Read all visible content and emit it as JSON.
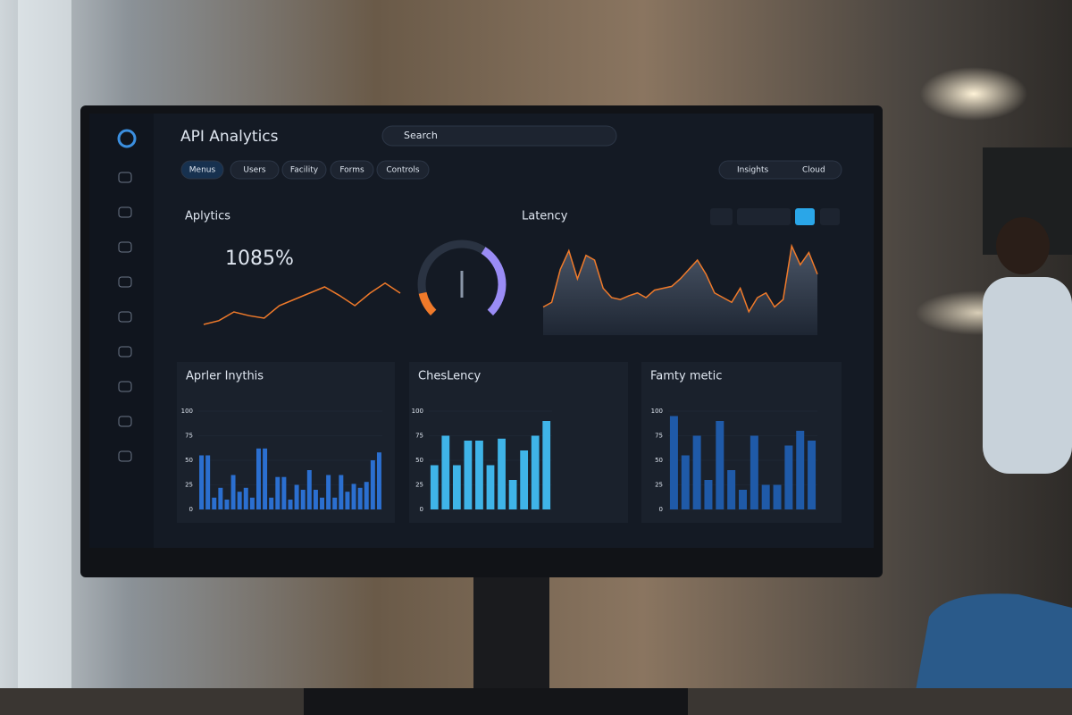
{
  "header": {
    "title": "API Analytics",
    "search": "Search"
  },
  "tabs": [
    "Menus",
    "Users",
    "Facility",
    "Forms",
    "Controls"
  ],
  "toolbar": [
    "Insights",
    "Cloud"
  ],
  "analytics": {
    "title": "Aplytics",
    "kpi": "1085%",
    "line": {
      "values": [
        5,
        8,
        15,
        12,
        10,
        20,
        25,
        30,
        35,
        28,
        20,
        30,
        38,
        30
      ],
      "ylim": [
        0,
        50
      ],
      "color": "#f07a2a"
    },
    "gauge": {
      "value": 75,
      "ylim": [
        0,
        100
      ],
      "color": "#9a8cf5"
    }
  },
  "latency": {
    "title": "Latency",
    "values": [
      30,
      35,
      70,
      90,
      60,
      85,
      80,
      50,
      40,
      38,
      42,
      45,
      40,
      48,
      50,
      52,
      60,
      70,
      80,
      65,
      45,
      40,
      35,
      50,
      25,
      40,
      45,
      30,
      38,
      95,
      75,
      88,
      65
    ],
    "ylim": [
      0,
      100
    ],
    "color": "#f07a2a"
  },
  "bar_panels": [
    {
      "title": "Aprler Inythis",
      "ylim": [
        0,
        100
      ],
      "yticks": [
        0,
        25,
        50,
        75,
        100
      ],
      "color": "#2b6fd0",
      "values": [
        55,
        55,
        12,
        22,
        10,
        35,
        18,
        22,
        12,
        62,
        62,
        12,
        33,
        33,
        10,
        25,
        20,
        40,
        20,
        12,
        35,
        12,
        35,
        18,
        26,
        22,
        28,
        50,
        58
      ]
    },
    {
      "title": "ChesLency",
      "ylim": [
        0,
        100
      ],
      "yticks": [
        0,
        25,
        50,
        75,
        100
      ],
      "color": "#3fb4e8",
      "values": [
        45,
        75,
        45,
        70,
        70,
        45,
        72,
        30,
        60,
        75,
        90
      ]
    },
    {
      "title": "Famty metic",
      "ylim": [
        0,
        100
      ],
      "yticks": [
        0,
        25,
        50,
        75,
        100
      ],
      "color": "#1f5aa8",
      "values": [
        95,
        55,
        75,
        30,
        90,
        40,
        20,
        75,
        25,
        25,
        65,
        80,
        70
      ]
    }
  ]
}
